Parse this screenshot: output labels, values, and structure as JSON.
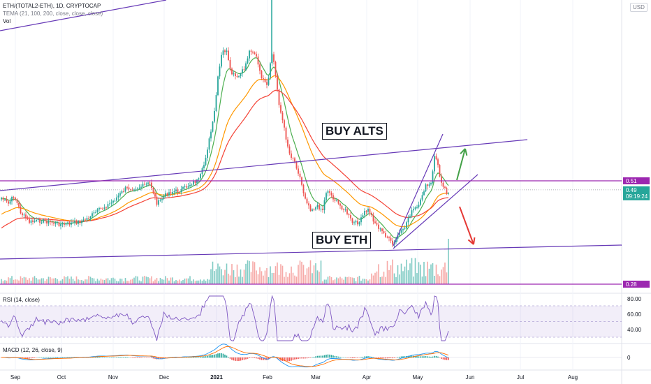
{
  "header": {
    "symbol": "ETH/(TOTAL2-ETH), 1D, CRYPTOCAP",
    "tema": "TEMA (21, 100, 200, close, close, close)",
    "vol": "Vol",
    "currency_button": "USD"
  },
  "annotations": {
    "buy_alts": "BUY ALTS",
    "buy_eth": "BUY ETH"
  },
  "price_labels": [
    {
      "value": 0.51,
      "label": "0.51",
      "color": "#9c27b0"
    },
    {
      "value": 0.49,
      "label": "0.49",
      "sub": "09:19:24",
      "color": "#26a69a"
    },
    {
      "value": 0.28,
      "label": "0.28",
      "color": "#9c27b0"
    }
  ],
  "rsi_panel": {
    "label": "RSI (14, close)",
    "ticks": [
      "80.00",
      "60.00",
      "40.00"
    ]
  },
  "macd_panel": {
    "label": "MACD (12, 26, close, 9)",
    "ticks": [
      "0"
    ]
  },
  "colors": {
    "up": "#26a69a",
    "down": "#ef5350",
    "vol_up": "#80cbc4",
    "vol_down": "#f7a9a7",
    "tema_fast": "#4caf50",
    "tema_mid": "#ff9800",
    "tema_slow": "#f44336",
    "trend": "#673ab7",
    "hline": "#9c27b0",
    "rsi": "#7e57c2",
    "macd": "#2196f3",
    "signal": "#ff6d00"
  },
  "chart_data": {
    "type": "candlestick",
    "x_axis": [
      "Sep",
      "Oct",
      "Nov",
      "Dec",
      "2021",
      "Feb",
      "Mar",
      "Apr",
      "May",
      "Jun",
      "Jul",
      "Aug"
    ],
    "price_axis": [
      "0.51",
      "0.49",
      "0.28"
    ],
    "horizontal_lines": [
      0.51,
      0.28
    ],
    "last_price": 0.49,
    "countdown": "09:19:24",
    "trendlines": [
      "upper channel",
      "lower channel",
      "rising wedge upper",
      "rising wedge lower"
    ],
    "arrows": [
      "up",
      "down"
    ]
  }
}
